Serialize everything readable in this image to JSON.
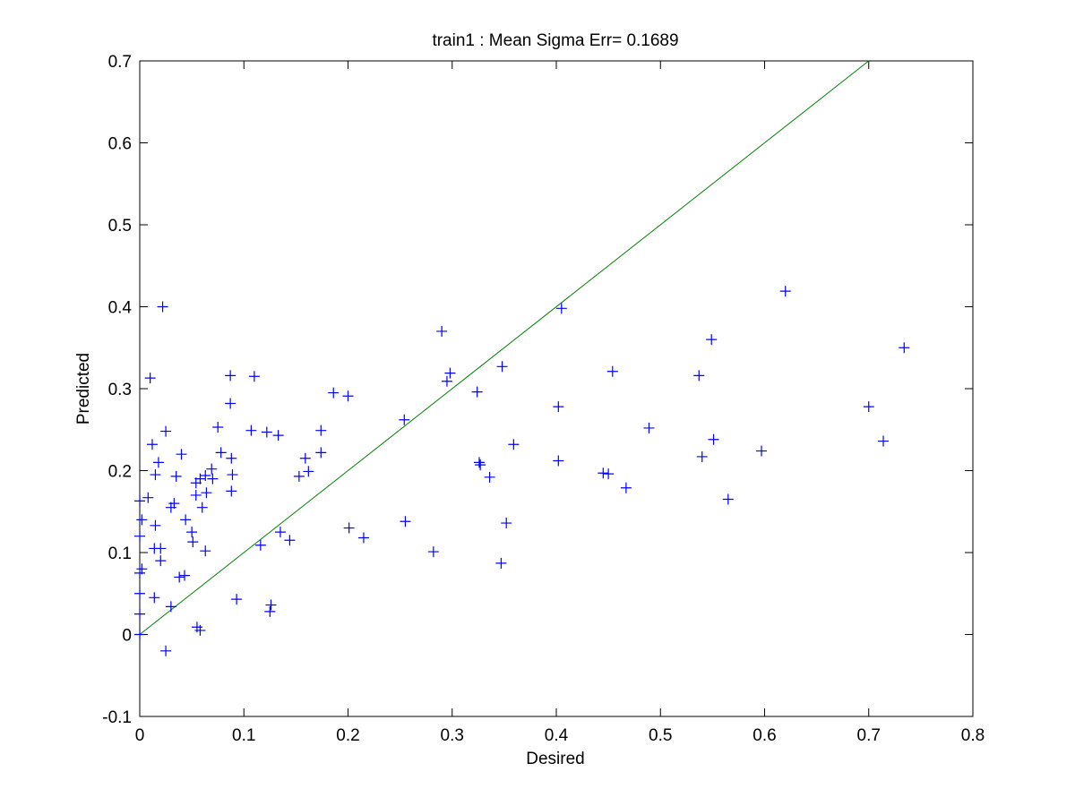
{
  "chart_data": {
    "type": "scatter",
    "title": "train1 :  Mean Sigma Err= 0.1689",
    "xlabel": "Desired",
    "ylabel": "Predicted",
    "xlim": [
      0,
      0.8
    ],
    "ylim": [
      -0.1,
      0.7
    ],
    "xticks": [
      0,
      0.1,
      0.2,
      0.3,
      0.4,
      0.5,
      0.6,
      0.7,
      0.8
    ],
    "xtick_labels": [
      "0",
      "0.1",
      "0.2",
      "0.3",
      "0.4",
      "0.5",
      "0.6",
      "0.7",
      "0.8"
    ],
    "yticks": [
      -0.1,
      0,
      0.1,
      0.2,
      0.3,
      0.4,
      0.5,
      0.6,
      0.7
    ],
    "ytick_labels": [
      "-0.1",
      "0",
      "0.1",
      "0.2",
      "0.3",
      "0.4",
      "0.5",
      "0.6",
      "0.7"
    ],
    "grid": false,
    "marker": "+",
    "marker_color": "#0000ff",
    "line_color": "#008000",
    "reference_line": {
      "x": [
        0,
        0.7
      ],
      "y": [
        0,
        0.7
      ]
    },
    "points": [
      [
        0.0,
        0.0
      ],
      [
        0.0,
        0.025
      ],
      [
        0.0,
        0.05
      ],
      [
        0.0,
        0.075
      ],
      [
        0.002,
        0.08
      ],
      [
        0.0,
        0.12
      ],
      [
        0.002,
        0.14
      ],
      [
        0.0,
        0.163
      ],
      [
        0.008,
        0.167
      ],
      [
        0.012,
        0.232
      ],
      [
        0.01,
        0.313
      ],
      [
        0.015,
        0.195
      ],
      [
        0.015,
        0.133
      ],
      [
        0.018,
        0.21
      ],
      [
        0.014,
        0.105
      ],
      [
        0.02,
        0.105
      ],
      [
        0.02,
        0.09
      ],
      [
        0.014,
        0.045
      ],
      [
        0.022,
        0.4
      ],
      [
        0.025,
        0.248
      ],
      [
        0.025,
        -0.02
      ],
      [
        0.03,
        0.155
      ],
      [
        0.033,
        0.16
      ],
      [
        0.035,
        0.193
      ],
      [
        0.03,
        0.034
      ],
      [
        0.038,
        0.07
      ],
      [
        0.043,
        0.072
      ],
      [
        0.04,
        0.22
      ],
      [
        0.044,
        0.14
      ],
      [
        0.05,
        0.125
      ],
      [
        0.051,
        0.113
      ],
      [
        0.054,
        0.17
      ],
      [
        0.054,
        0.185
      ],
      [
        0.058,
        0.19
      ],
      [
        0.06,
        0.155
      ],
      [
        0.063,
        0.194
      ],
      [
        0.064,
        0.173
      ],
      [
        0.063,
        0.102
      ],
      [
        0.055,
        0.009
      ],
      [
        0.058,
        0.005
      ],
      [
        0.069,
        0.202
      ],
      [
        0.07,
        0.19
      ],
      [
        0.075,
        0.253
      ],
      [
        0.078,
        0.222
      ],
      [
        0.087,
        0.316
      ],
      [
        0.087,
        0.282
      ],
      [
        0.088,
        0.215
      ],
      [
        0.088,
        0.175
      ],
      [
        0.089,
        0.195
      ],
      [
        0.093,
        0.043
      ],
      [
        0.107,
        0.249
      ],
      [
        0.11,
        0.315
      ],
      [
        0.116,
        0.109
      ],
      [
        0.122,
        0.247
      ],
      [
        0.125,
        0.028
      ],
      [
        0.126,
        0.036
      ],
      [
        0.133,
        0.243
      ],
      [
        0.135,
        0.125
      ],
      [
        0.144,
        0.115
      ],
      [
        0.153,
        0.193
      ],
      [
        0.159,
        0.215
      ],
      [
        0.162,
        0.199
      ],
      [
        0.174,
        0.222
      ],
      [
        0.174,
        0.249
      ],
      [
        0.186,
        0.295
      ],
      [
        0.2,
        0.291
      ],
      [
        0.201,
        0.13
      ],
      [
        0.215,
        0.118
      ],
      [
        0.254,
        0.262
      ],
      [
        0.255,
        0.138
      ],
      [
        0.282,
        0.101
      ],
      [
        0.29,
        0.37
      ],
      [
        0.295,
        0.309
      ],
      [
        0.298,
        0.319
      ],
      [
        0.324,
        0.296
      ],
      [
        0.327,
        0.207
      ],
      [
        0.326,
        0.21
      ],
      [
        0.336,
        0.192
      ],
      [
        0.347,
        0.087
      ],
      [
        0.348,
        0.327
      ],
      [
        0.352,
        0.136
      ],
      [
        0.359,
        0.232
      ],
      [
        0.402,
        0.278
      ],
      [
        0.402,
        0.212
      ],
      [
        0.405,
        0.398
      ],
      [
        0.445,
        0.197
      ],
      [
        0.45,
        0.196
      ],
      [
        0.454,
        0.321
      ],
      [
        0.467,
        0.179
      ],
      [
        0.489,
        0.252
      ],
      [
        0.537,
        0.316
      ],
      [
        0.54,
        0.217
      ],
      [
        0.549,
        0.36
      ],
      [
        0.551,
        0.238
      ],
      [
        0.565,
        0.165
      ],
      [
        0.597,
        0.224
      ],
      [
        0.62,
        0.419
      ],
      [
        0.7,
        0.278
      ],
      [
        0.714,
        0.236
      ],
      [
        0.734,
        0.35
      ]
    ]
  }
}
